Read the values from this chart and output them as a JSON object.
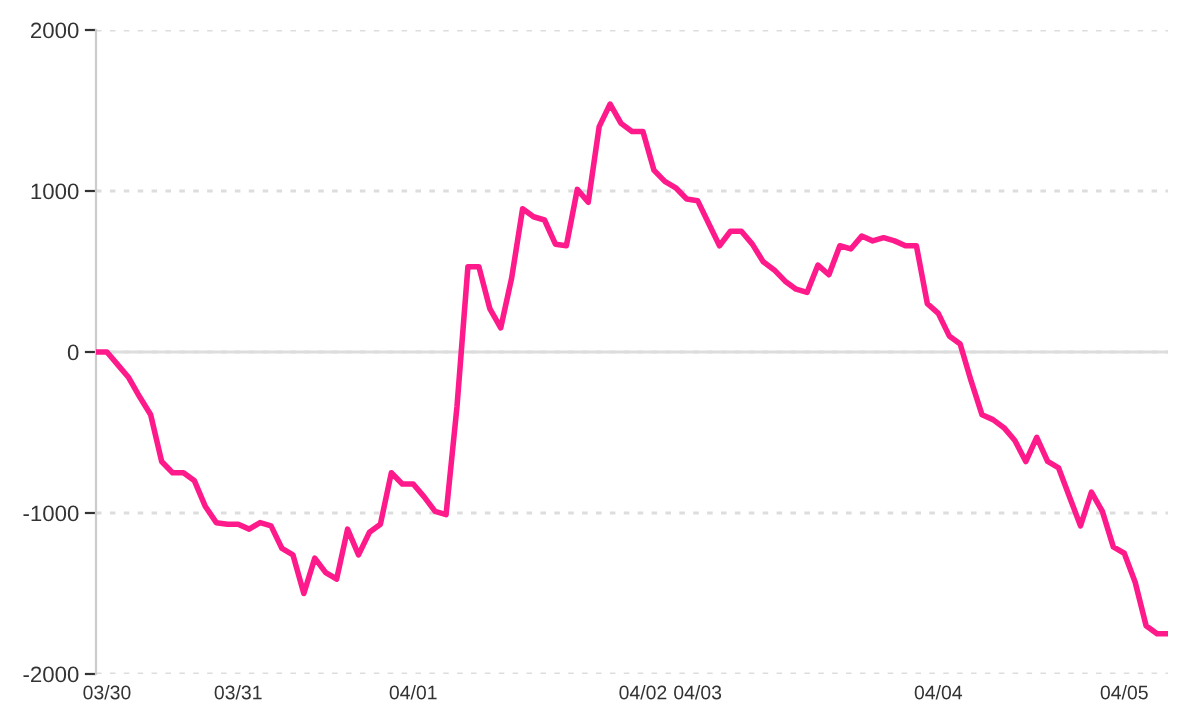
{
  "chart_data": {
    "type": "line",
    "categories": [
      null,
      "03/30",
      null,
      null,
      null,
      null,
      null,
      null,
      null,
      null,
      null,
      null,
      null,
      "03/31",
      null,
      null,
      null,
      null,
      null,
      null,
      null,
      null,
      null,
      null,
      null,
      null,
      null,
      null,
      null,
      "04/01",
      null,
      null,
      null,
      null,
      null,
      null,
      null,
      null,
      null,
      null,
      null,
      null,
      null,
      null,
      null,
      null,
      null,
      null,
      null,
      null,
      "04/02",
      null,
      null,
      null,
      null,
      "04/03",
      null,
      null,
      null,
      null,
      null,
      null,
      null,
      null,
      null,
      null,
      null,
      null,
      null,
      null,
      null,
      null,
      null,
      null,
      null,
      null,
      null,
      "04/04",
      null,
      null,
      null,
      null,
      null,
      null,
      null,
      null,
      null,
      null,
      null,
      null,
      null,
      null,
      null,
      null,
      "04/05",
      null,
      null,
      null,
      null
    ],
    "series": [
      {
        "color": "#ff1a8c",
        "values": [
          0,
          0,
          -80,
          -160,
          -280,
          -390,
          -680,
          -750,
          -750,
          -800,
          -960,
          -1060,
          -1070,
          -1070,
          -1100,
          -1060,
          -1080,
          -1220,
          -1260,
          -1500,
          -1280,
          -1370,
          -1410,
          -1100,
          -1260,
          -1120,
          -1070,
          -750,
          -820,
          -820,
          -900,
          -990,
          -1010,
          -340,
          530,
          530,
          270,
          150,
          460,
          890,
          840,
          820,
          670,
          660,
          1010,
          930,
          1400,
          1540,
          1420,
          1370,
          1370,
          1130,
          1060,
          1020,
          950,
          940,
          800,
          660,
          750,
          750,
          670,
          560,
          510,
          440,
          390,
          370,
          540,
          480,
          660,
          640,
          720,
          690,
          710,
          690,
          660,
          660,
          300,
          240,
          100,
          50,
          -180,
          -390,
          -420,
          -470,
          -550,
          -680,
          -530,
          -680,
          -720,
          -900,
          -1080,
          -870,
          -990,
          -1210,
          -1250,
          -1430,
          -1700,
          -1750,
          -1750
        ]
      }
    ],
    "ylim": [
      -2000,
      2000
    ],
    "yticks": [
      -2000,
      -1000,
      0,
      1000,
      2000
    ],
    "grid": "y",
    "marker": "none",
    "line_style": "solid",
    "ref_lines": [
      {
        "axis": "y",
        "value": 0,
        "color": "#dddddd",
        "line_style": "solid"
      }
    ]
  }
}
